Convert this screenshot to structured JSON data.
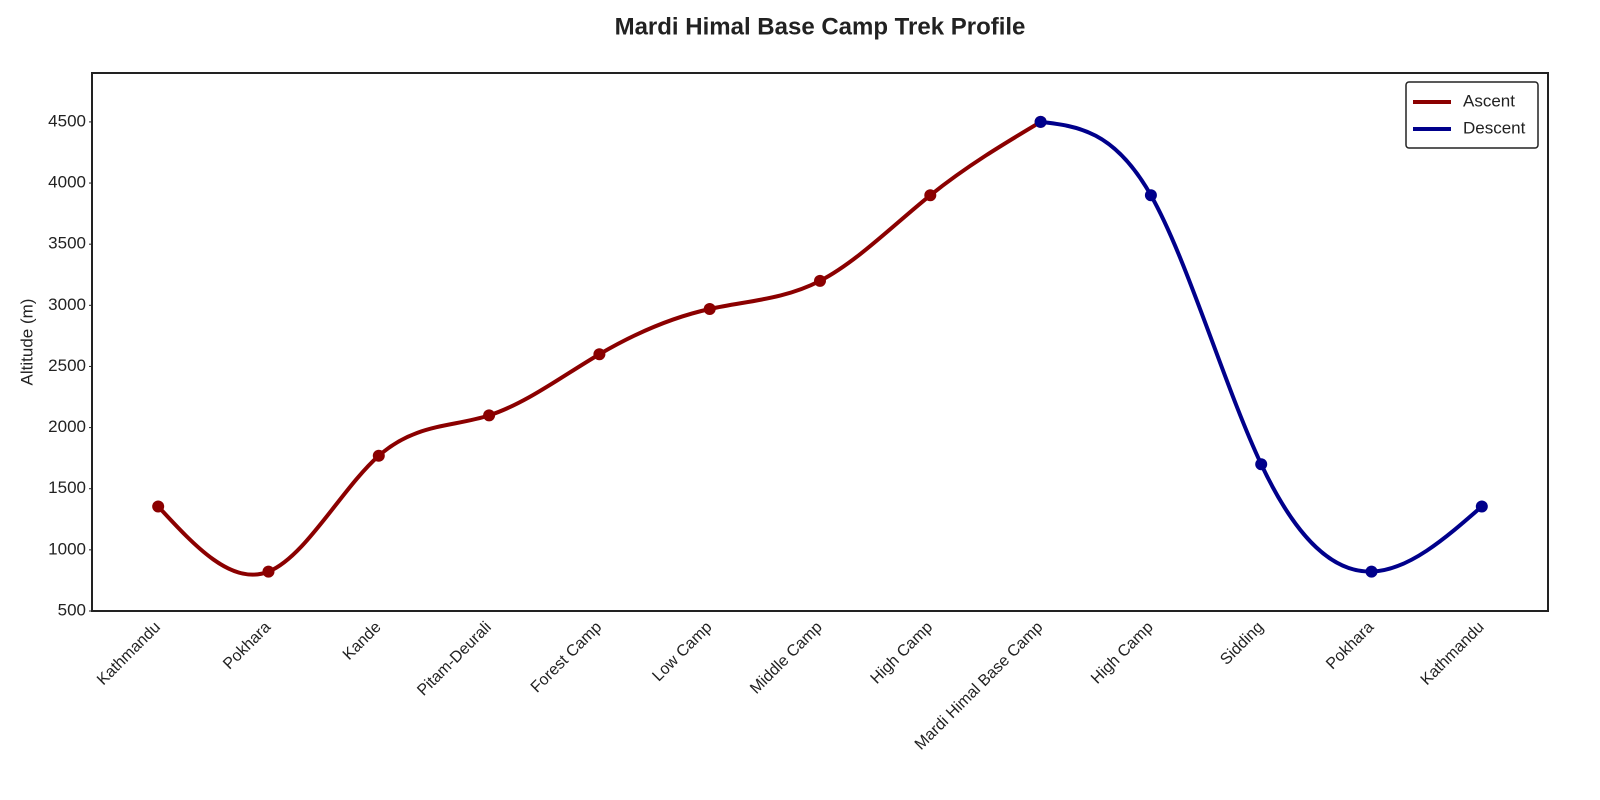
{
  "chart_data": {
    "type": "line",
    "title": "Mardi Himal Base Camp Trek Profile",
    "y_label": "Altitude (m)",
    "categories": [
      "Kathmandu",
      "Pokhara",
      "Kande",
      "Pitam-Deurali",
      "Forest Camp",
      "Low Camp",
      "Middle Camp",
      "High Camp",
      "Mardi Himal Base Camp",
      "High Camp",
      "Sidding",
      "Pokhara",
      "Kathmandu"
    ],
    "series": [
      {
        "name": "Ascent",
        "color": "#8b0000",
        "values": [
          1355,
          822,
          1770,
          2100,
          2600,
          2970,
          3200,
          3900,
          4500,
          null,
          null,
          null,
          null
        ]
      },
      {
        "name": "Descent",
        "color": "#00008b",
        "values": [
          null,
          null,
          null,
          null,
          null,
          null,
          null,
          null,
          4500,
          3900,
          1700,
          822,
          1355
        ]
      }
    ],
    "ylim": [
      500,
      4900
    ],
    "yticks": [
      500,
      1000,
      1500,
      2000,
      2500,
      3000,
      3500,
      4000,
      4500
    ],
    "grid": false,
    "legend": "upper right",
    "smooth": true
  }
}
